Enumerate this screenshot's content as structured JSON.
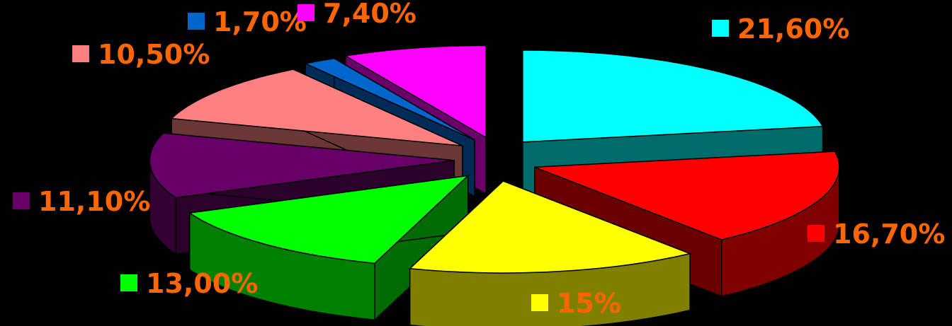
{
  "chart_data": {
    "type": "pie",
    "title": "",
    "style": "3d-exploded",
    "label_color": "#FF6600",
    "slices": [
      {
        "label": "21,60%",
        "value": 21.6,
        "color": "#00FFFF"
      },
      {
        "label": "16,70%",
        "value": 16.7,
        "color": "#FF0000"
      },
      {
        "label": "15%",
        "value": 15.0,
        "color": "#FFFF00"
      },
      {
        "label": "13,00%",
        "value": 13.0,
        "color": "#00FF00"
      },
      {
        "label": "11,10%",
        "value": 11.1,
        "color": "#660066"
      },
      {
        "label": "10,50%",
        "value": 10.5,
        "color": "#FF8080"
      },
      {
        "label": "1,70%",
        "value": 1.7,
        "color": "#0066CC"
      },
      {
        "label": "7,40%",
        "value": 7.4,
        "color": "#FF00FF"
      }
    ]
  }
}
